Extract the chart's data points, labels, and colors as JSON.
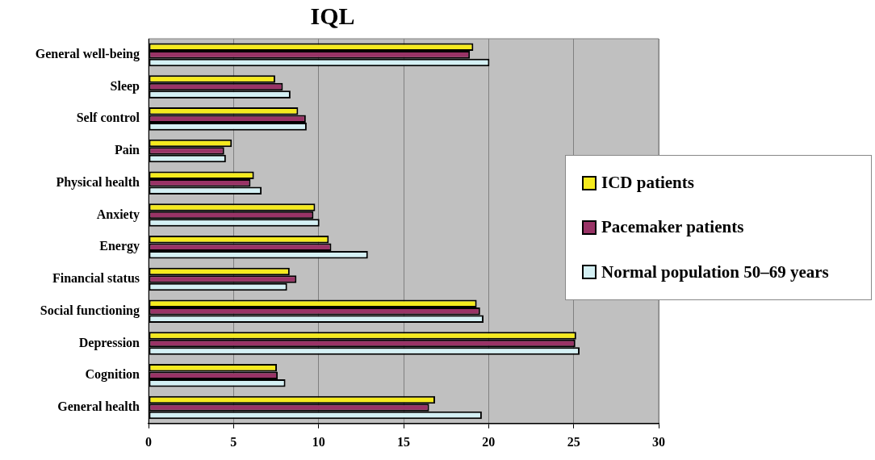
{
  "chart_data": {
    "type": "bar",
    "orientation": "horizontal",
    "title": "IQL",
    "categories": [
      "General well-being",
      "Sleep",
      "Self control",
      "Pain",
      "Physical health",
      "Anxiety",
      "Energy",
      "Financial status",
      "Social functioning",
      "Depression",
      "Cognition",
      "General health"
    ],
    "series": [
      {
        "name": "ICD patients",
        "color": "#f5ea1e",
        "values": [
          19.1,
          7.45,
          8.8,
          4.9,
          6.2,
          9.8,
          10.6,
          8.3,
          19.3,
          25.15,
          7.55,
          16.85
        ]
      },
      {
        "name": "Pacemaker patients",
        "color": "#993366",
        "values": [
          18.9,
          7.9,
          9.25,
          4.45,
          6.0,
          9.7,
          10.75,
          8.7,
          19.5,
          25.1,
          7.6,
          16.5
        ]
      },
      {
        "name": "Normal population 50–69 years",
        "color": "#d4f0f4",
        "values": [
          20.05,
          8.35,
          9.3,
          4.55,
          6.65,
          10.05,
          12.9,
          8.15,
          19.7,
          25.35,
          8.05,
          19.6
        ]
      }
    ],
    "xlim": [
      0,
      30
    ],
    "xticks": [
      0,
      5,
      10,
      15,
      20,
      25,
      30
    ],
    "grid": "x",
    "legend": "right"
  }
}
